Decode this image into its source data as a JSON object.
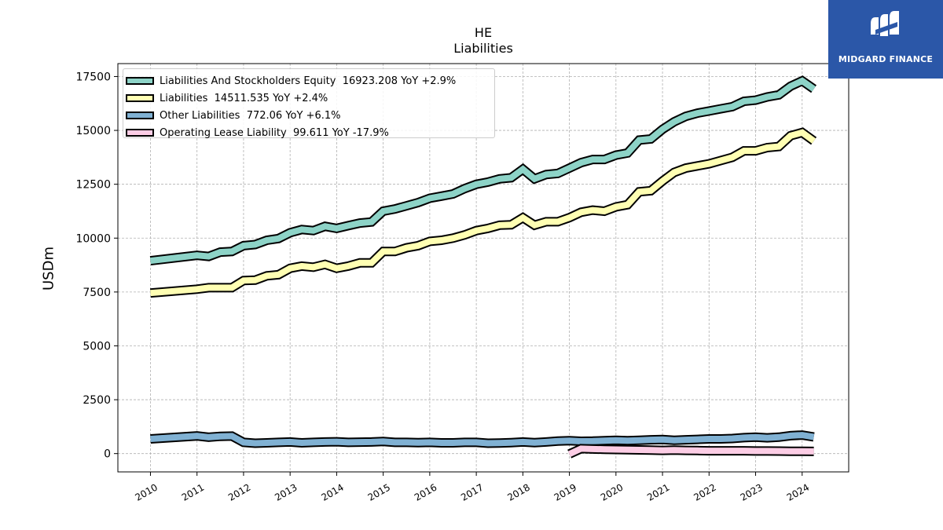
{
  "header": {
    "title": "HE",
    "subtitle": "Liabilities"
  },
  "logo": {
    "text": "MIDGARD FINANCE",
    "color": "#2b57a8",
    "icon": "midgard-logo-icon"
  },
  "chart_data": {
    "type": "line",
    "title": "HE",
    "subtitle": "Liabilities",
    "xlabel": "",
    "ylabel": "USDm",
    "ylim": [
      -850,
      18100
    ],
    "xlim": [
      2009.3,
      2025.0
    ],
    "x_ticks": [
      "2010",
      "2011",
      "2012",
      "2013",
      "2014",
      "2015",
      "2016",
      "2017",
      "2018",
      "2019",
      "2020",
      "2021",
      "2022",
      "2023",
      "2024"
    ],
    "y_ticks": [
      "0",
      "2500",
      "5000",
      "7500",
      "10000",
      "12500",
      "15000",
      "17500"
    ],
    "grid": true,
    "legend_position": "top-left",
    "series": [
      {
        "name": "Liabilities And Stockholders Equity",
        "legend": "Liabilities And Stockholders Equity  16923.208 YoY +2.9%",
        "color": "#8dd3c7",
        "x": [
          2010.0,
          2011.0,
          2011.25,
          2011.5,
          2011.75,
          2012.0,
          2012.25,
          2012.5,
          2012.75,
          2013.0,
          2013.25,
          2013.5,
          2013.75,
          2014.0,
          2014.25,
          2014.5,
          2014.75,
          2015.0,
          2015.25,
          2015.5,
          2015.75,
          2016.0,
          2016.25,
          2016.5,
          2016.75,
          2017.0,
          2017.25,
          2017.5,
          2017.75,
          2018.0,
          2018.25,
          2018.5,
          2018.75,
          2019.0,
          2019.25,
          2019.5,
          2019.75,
          2020.0,
          2020.25,
          2020.5,
          2020.75,
          2021.0,
          2021.25,
          2021.5,
          2021.75,
          2022.0,
          2022.25,
          2022.5,
          2022.75,
          2023.0,
          2023.25,
          2023.5,
          2023.75,
          2024.0,
          2024.25
        ],
        "y": [
          8950,
          9200,
          9150,
          9350,
          9380,
          9650,
          9700,
          9900,
          9980,
          10250,
          10400,
          10350,
          10550,
          10450,
          10580,
          10700,
          10750,
          11250,
          11350,
          11500,
          11650,
          11850,
          11950,
          12050,
          12300,
          12500,
          12600,
          12750,
          12800,
          13200,
          12750,
          12950,
          13000,
          13250,
          13500,
          13650,
          13650,
          13850,
          13950,
          14550,
          14600,
          15050,
          15400,
          15650,
          15800,
          15900,
          16000,
          16100,
          16350,
          16400,
          16550,
          16650,
          17050,
          17300,
          16923.208
        ]
      },
      {
        "name": "Liabilities",
        "legend": "Liabilities  14511.535 YoY +2.4%",
        "color": "#ffffb3",
        "x": [
          2010.0,
          2011.0,
          2011.25,
          2011.5,
          2011.75,
          2012.0,
          2012.25,
          2012.5,
          2012.75,
          2013.0,
          2013.25,
          2013.5,
          2013.75,
          2014.0,
          2014.25,
          2014.5,
          2014.75,
          2015.0,
          2015.25,
          2015.5,
          2015.75,
          2016.0,
          2016.25,
          2016.5,
          2016.75,
          2017.0,
          2017.25,
          2017.5,
          2017.75,
          2018.0,
          2018.25,
          2018.5,
          2018.75,
          2019.0,
          2019.25,
          2019.5,
          2019.75,
          2020.0,
          2020.25,
          2020.5,
          2020.75,
          2021.0,
          2021.25,
          2021.5,
          2021.75,
          2022.0,
          2022.25,
          2022.5,
          2022.75,
          2023.0,
          2023.25,
          2023.5,
          2023.75,
          2024.0,
          2024.25
        ],
        "y": [
          7450,
          7630,
          7700,
          7700,
          7700,
          8030,
          8050,
          8250,
          8300,
          8600,
          8700,
          8650,
          8780,
          8600,
          8700,
          8850,
          8850,
          9380,
          9380,
          9550,
          9650,
          9850,
          9900,
          10000,
          10150,
          10350,
          10450,
          10600,
          10620,
          10950,
          10600,
          10760,
          10760,
          10950,
          11200,
          11300,
          11250,
          11450,
          11550,
          12150,
          12200,
          12650,
          13050,
          13250,
          13350,
          13450,
          13600,
          13750,
          14050,
          14050,
          14200,
          14250,
          14750,
          14900,
          14511.535
        ]
      },
      {
        "name": "Other Liabilities",
        "legend": "Other Liabilities  772.06 YoY +6.1%",
        "color": "#80b1d3",
        "x": [
          2010.0,
          2011.0,
          2011.25,
          2011.5,
          2011.75,
          2012.0,
          2012.25,
          2012.5,
          2012.75,
          2013.0,
          2013.25,
          2013.5,
          2013.75,
          2014.0,
          2014.25,
          2014.5,
          2014.75,
          2015.0,
          2015.25,
          2015.5,
          2015.75,
          2016.0,
          2016.25,
          2016.5,
          2016.75,
          2017.0,
          2017.25,
          2017.5,
          2017.75,
          2018.0,
          2018.25,
          2018.5,
          2018.75,
          2019.0,
          2019.25,
          2019.5,
          2019.75,
          2020.0,
          2020.25,
          2020.5,
          2020.75,
          2021.0,
          2021.25,
          2021.5,
          2021.75,
          2022.0,
          2022.25,
          2022.5,
          2022.75,
          2023.0,
          2023.25,
          2023.5,
          2023.75,
          2024.0,
          2024.25
        ],
        "y": [
          680,
          820,
          760,
          800,
          810,
          520,
          480,
          500,
          520,
          540,
          500,
          520,
          540,
          550,
          520,
          530,
          540,
          560,
          520,
          520,
          510,
          520,
          500,
          500,
          520,
          520,
          480,
          490,
          510,
          540,
          510,
          540,
          580,
          600,
          570,
          580,
          600,
          620,
          600,
          620,
          640,
          650,
          620,
          640,
          660,
          680,
          680,
          700,
          740,
          760,
          730,
          760,
          830,
          860,
          772.06
        ]
      },
      {
        "name": "Operating Lease Liability",
        "legend": "Operating Lease Liability  99.611 YoY -17.9%",
        "color": "#fccde5",
        "x": [
          2019.0,
          2019.25,
          2019.5,
          2019.75,
          2020.0,
          2020.25,
          2020.5,
          2020.75,
          2021.0,
          2021.25,
          2021.5,
          2021.75,
          2022.0,
          2022.25,
          2022.5,
          2022.75,
          2023.0,
          2023.25,
          2023.5,
          2023.75,
          2024.0,
          2024.25
        ],
        "y": [
          -20,
          230,
          210,
          200,
          190,
          180,
          170,
          160,
          150,
          160,
          150,
          140,
          130,
          130,
          130,
          130,
          120,
          120,
          115,
          110,
          105,
          99.611
        ]
      }
    ]
  }
}
